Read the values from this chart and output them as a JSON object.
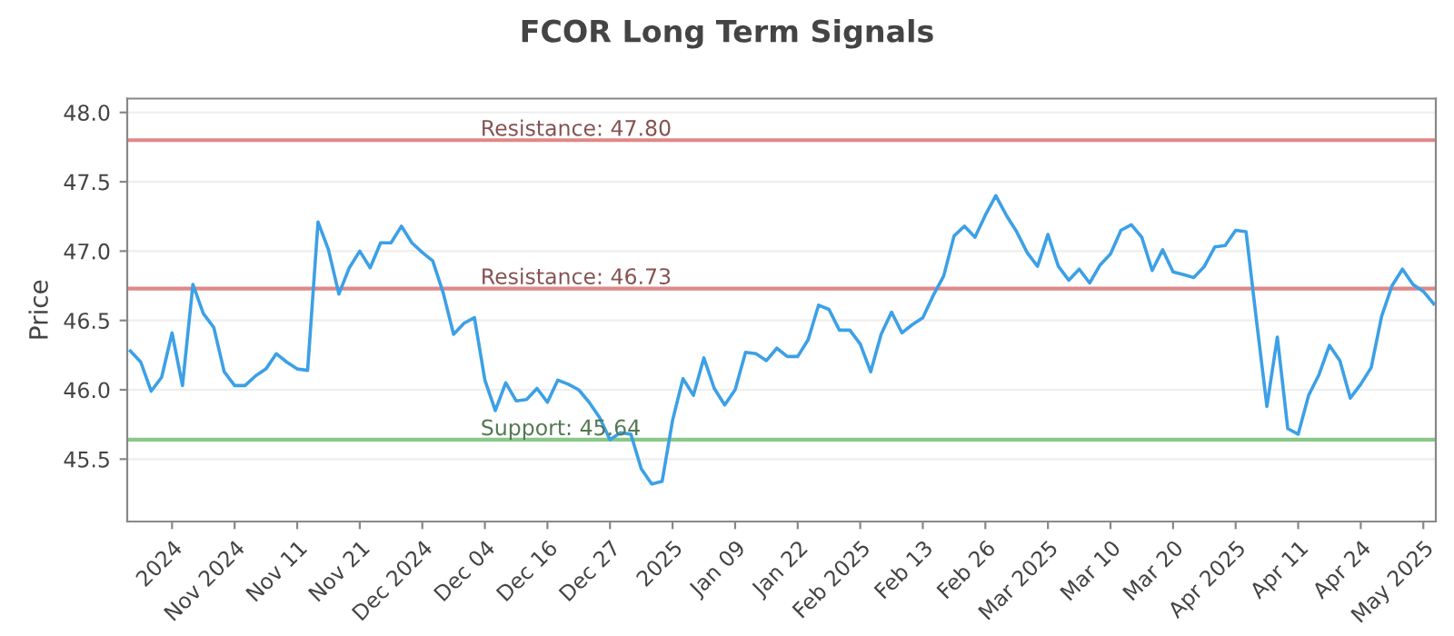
{
  "chart_data": {
    "type": "line",
    "title": "FCOR Long Term Signals",
    "ylabel": "Price",
    "categories": [
      null,
      null,
      null,
      null,
      "2024",
      null,
      null,
      null,
      null,
      null,
      "Nov 2024",
      null,
      null,
      null,
      null,
      null,
      "Nov 11",
      null,
      null,
      null,
      null,
      null,
      "Nov 21",
      null,
      null,
      null,
      null,
      null,
      "Dec 2024",
      null,
      null,
      null,
      null,
      null,
      "Dec 04",
      null,
      null,
      null,
      null,
      null,
      "Dec 16",
      null,
      null,
      null,
      null,
      null,
      "Dec 27",
      null,
      null,
      null,
      null,
      null,
      "2025",
      null,
      null,
      null,
      null,
      null,
      "Jan 09",
      null,
      null,
      null,
      null,
      null,
      "Jan 22",
      null,
      null,
      null,
      null,
      null,
      "Feb 2025",
      null,
      null,
      null,
      null,
      null,
      "Feb 13",
      null,
      null,
      null,
      null,
      null,
      "Feb 26",
      null,
      null,
      null,
      null,
      null,
      "Mar 2025",
      null,
      null,
      null,
      null,
      null,
      "Mar 10",
      null,
      null,
      null,
      null,
      null,
      "Mar 20",
      null,
      null,
      null,
      null,
      null,
      "Apr 2025",
      null,
      null,
      null,
      null,
      null,
      "Apr 11",
      null,
      null,
      null,
      null,
      null,
      "Apr 24",
      null,
      null,
      null,
      null,
      null,
      "May 2025",
      null
    ],
    "series": [
      {
        "color": "#3ca0e6",
        "values": [
          46.28,
          46.2,
          45.99,
          46.09,
          46.41,
          46.03,
          46.76,
          46.55,
          46.45,
          46.13,
          46.03,
          46.03,
          46.1,
          46.15,
          46.26,
          46.2,
          46.15,
          46.14,
          47.21,
          47.01,
          46.69,
          46.88,
          47.0,
          46.88,
          47.06,
          47.06,
          47.18,
          47.06,
          46.99,
          46.93,
          46.7,
          46.4,
          46.48,
          46.52,
          46.07,
          45.85,
          46.05,
          45.92,
          45.93,
          46.01,
          45.91,
          46.07,
          46.04,
          46.0,
          45.91,
          45.8,
          45.64,
          45.69,
          45.68,
          45.43,
          45.32,
          45.34,
          45.78,
          46.08,
          45.96,
          46.23,
          46.01,
          45.89,
          46.0,
          46.27,
          46.26,
          46.21,
          46.3,
          46.24,
          46.24,
          46.36,
          46.61,
          46.58,
          46.43,
          46.43,
          46.33,
          46.13,
          46.4,
          46.56,
          46.41,
          46.47,
          46.52,
          46.68,
          46.82,
          47.11,
          47.18,
          47.1,
          47.26,
          47.4,
          47.26,
          47.14,
          46.99,
          46.89,
          47.12,
          46.89,
          46.79,
          46.87,
          46.77,
          46.9,
          46.98,
          47.15,
          47.19,
          47.1,
          46.86,
          47.01,
          46.85,
          46.83,
          46.81,
          46.89,
          47.03,
          47.04,
          47.15,
          47.14,
          46.5,
          45.88,
          46.38,
          45.72,
          45.68,
          45.96,
          46.11,
          46.32,
          46.21,
          45.94,
          46.04,
          46.16,
          46.53,
          46.75,
          46.87,
          46.76,
          46.71,
          46.62
        ]
      }
    ],
    "ylim": [
      45.05,
      48.1
    ],
    "yticks": [
      45.5,
      {
        "value": 46,
        "label": "46.0"
      },
      46.5,
      {
        "value": 47,
        "label": "47.0"
      },
      47.5,
      {
        "value": 48,
        "label": "48.0"
      }
    ],
    "ref_lines": [
      {
        "axis": "y",
        "value": 47.8,
        "label": "Resistance: 47.80",
        "color": "#e08888"
      },
      {
        "axis": "y",
        "value": 46.73,
        "label": "Resistance: 46.73",
        "color": "#e08888"
      },
      {
        "axis": "y",
        "value": 45.64,
        "label": "Support: 45.64",
        "color": "#88c888"
      }
    ],
    "grid": "y",
    "marker": "none",
    "line_style": "solid",
    "legend": false
  }
}
